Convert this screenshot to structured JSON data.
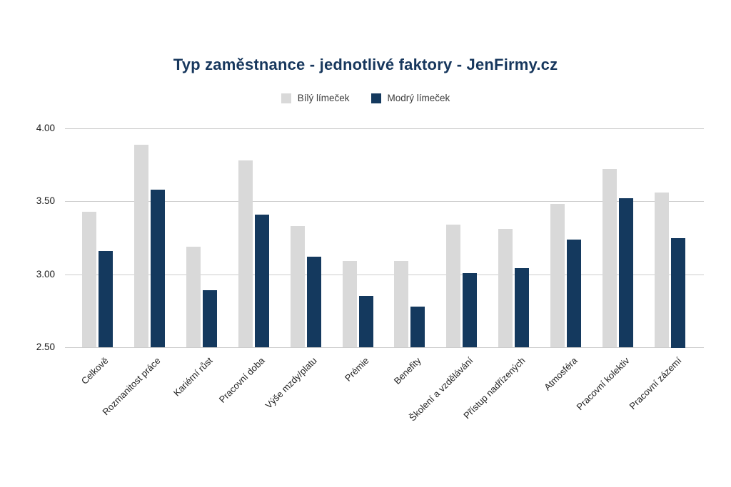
{
  "title": "Typ zaměstnance - jednotlivé faktory - JenFirmy.cz",
  "colors": {
    "title_text": "#17375D",
    "white_collar_series": "#D9D9D9",
    "blue_collar_series": "#14395E",
    "gridline": "#CCCCCC",
    "axis_text": "#222222"
  },
  "chart_data": {
    "type": "bar",
    "title": "Typ zaměstnance - jednotlivé faktory - JenFirmy.cz",
    "xlabel": "",
    "ylabel": "",
    "ylim": [
      2.5,
      4.0
    ],
    "grid": true,
    "legend_position": "top",
    "categories": [
      "Celkově",
      "Rozmanitost práce",
      "Kariérní růst",
      "Pracovní doba",
      "Výše mzdy/platu",
      "Prémie",
      "Benefity",
      "Školení a vzdělávání",
      "Přístup nadřízených",
      "Atmosféra",
      "Pracovní kolektiv",
      "Pracovní zázemí"
    ],
    "series": [
      {
        "name": "Bílý límeček",
        "color": "#D9D9D9",
        "values": [
          3.43,
          3.89,
          3.19,
          3.78,
          3.33,
          3.09,
          3.09,
          3.34,
          3.31,
          3.48,
          3.72,
          3.56
        ]
      },
      {
        "name": "Modrý límeček",
        "color": "#14395E",
        "values": [
          3.16,
          3.58,
          2.89,
          3.41,
          3.12,
          2.85,
          2.78,
          3.01,
          3.04,
          3.24,
          3.52,
          3.25
        ]
      }
    ],
    "yticks": [
      {
        "value": 4.0,
        "label": "4.00"
      },
      {
        "value": 3.5,
        "label": "3.50"
      },
      {
        "value": 3.0,
        "label": "3.00"
      },
      {
        "value": 2.5,
        "label": "2.50"
      }
    ]
  }
}
